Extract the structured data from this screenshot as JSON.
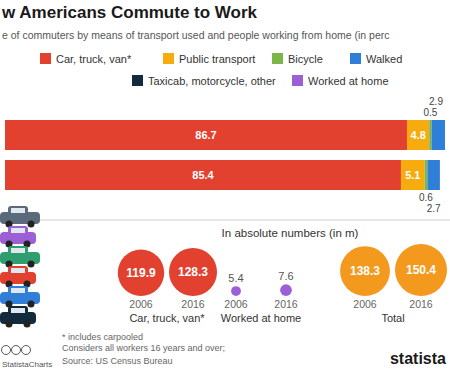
{
  "chart_data": [
    {
      "type": "bar",
      "title": "w Americans Commute to Work",
      "subtitle": "e of commuters by means of transport used and people working from home (in perc",
      "orientation": "horizontal",
      "stacked": true,
      "data_labels": true,
      "tick_labels": false,
      "legend": "top",
      "categories": [
        null,
        null
      ],
      "series": [
        {
          "name": "Car, truck, van*",
          "color": "#e2412f",
          "values": [
            86.7,
            85.4
          ]
        },
        {
          "name": "Public transport",
          "color": "#f6ac0e",
          "values": [
            4.8,
            5.1
          ]
        },
        {
          "name": "Bicycle",
          "color": "#7ab648",
          "values": [
            0.5,
            0.6
          ]
        },
        {
          "name": "Walked",
          "color": "#2f7ed8",
          "values": [
            2.9,
            2.7
          ]
        },
        {
          "name": "Taxicab, motorcycle, other",
          "color": "#13293d",
          "values": [
            null,
            null
          ]
        },
        {
          "name": "Worked at home",
          "color": "#9c5fd6",
          "values": [
            null,
            null
          ]
        }
      ]
    },
    {
      "type": "bubble",
      "title": "In absolute numbers (in m)",
      "data_labels": true,
      "tick_labels": false,
      "series": [
        {
          "name": "Car, truck, van*",
          "color": "#e2412f",
          "x": [
            "2006",
            "2016"
          ],
          "values": [
            119.9,
            128.3
          ]
        },
        {
          "name": "Worked at home",
          "color": "#9c5fd6",
          "x": [
            "2006",
            "2016"
          ],
          "values": [
            5.4,
            7.6
          ]
        },
        {
          "name": "Total",
          "color": "#f39a1e",
          "x": [
            "2006",
            "2016"
          ],
          "values": [
            138.3,
            150.4
          ]
        }
      ]
    }
  ],
  "notes": [
    "* includes carpooled",
    "Considers all workers 16 years and over;"
  ],
  "source": "Source: US Census Bureau",
  "credit": "StatistaCharts",
  "brand": "statista"
}
